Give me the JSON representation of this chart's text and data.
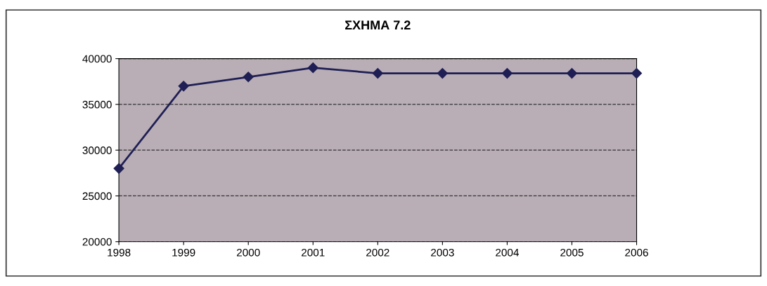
{
  "chart_data": {
    "type": "line",
    "title": "ΣΧΗΜΑ 7.2",
    "categories": [
      "1998",
      "1999",
      "2000",
      "2001",
      "2002",
      "2003",
      "2004",
      "2005",
      "2006"
    ],
    "series": [
      {
        "color": "#1f1f55",
        "values": [
          28000,
          37000,
          38000,
          39000,
          38400,
          38400,
          38400,
          38400,
          38400
        ]
      }
    ],
    "ylim": [
      20000,
      40000
    ],
    "yticks": [
      20000,
      25000,
      30000,
      35000,
      40000
    ],
    "grid": "y",
    "marker": "diamond",
    "line_style": "solid",
    "legend": false
  }
}
